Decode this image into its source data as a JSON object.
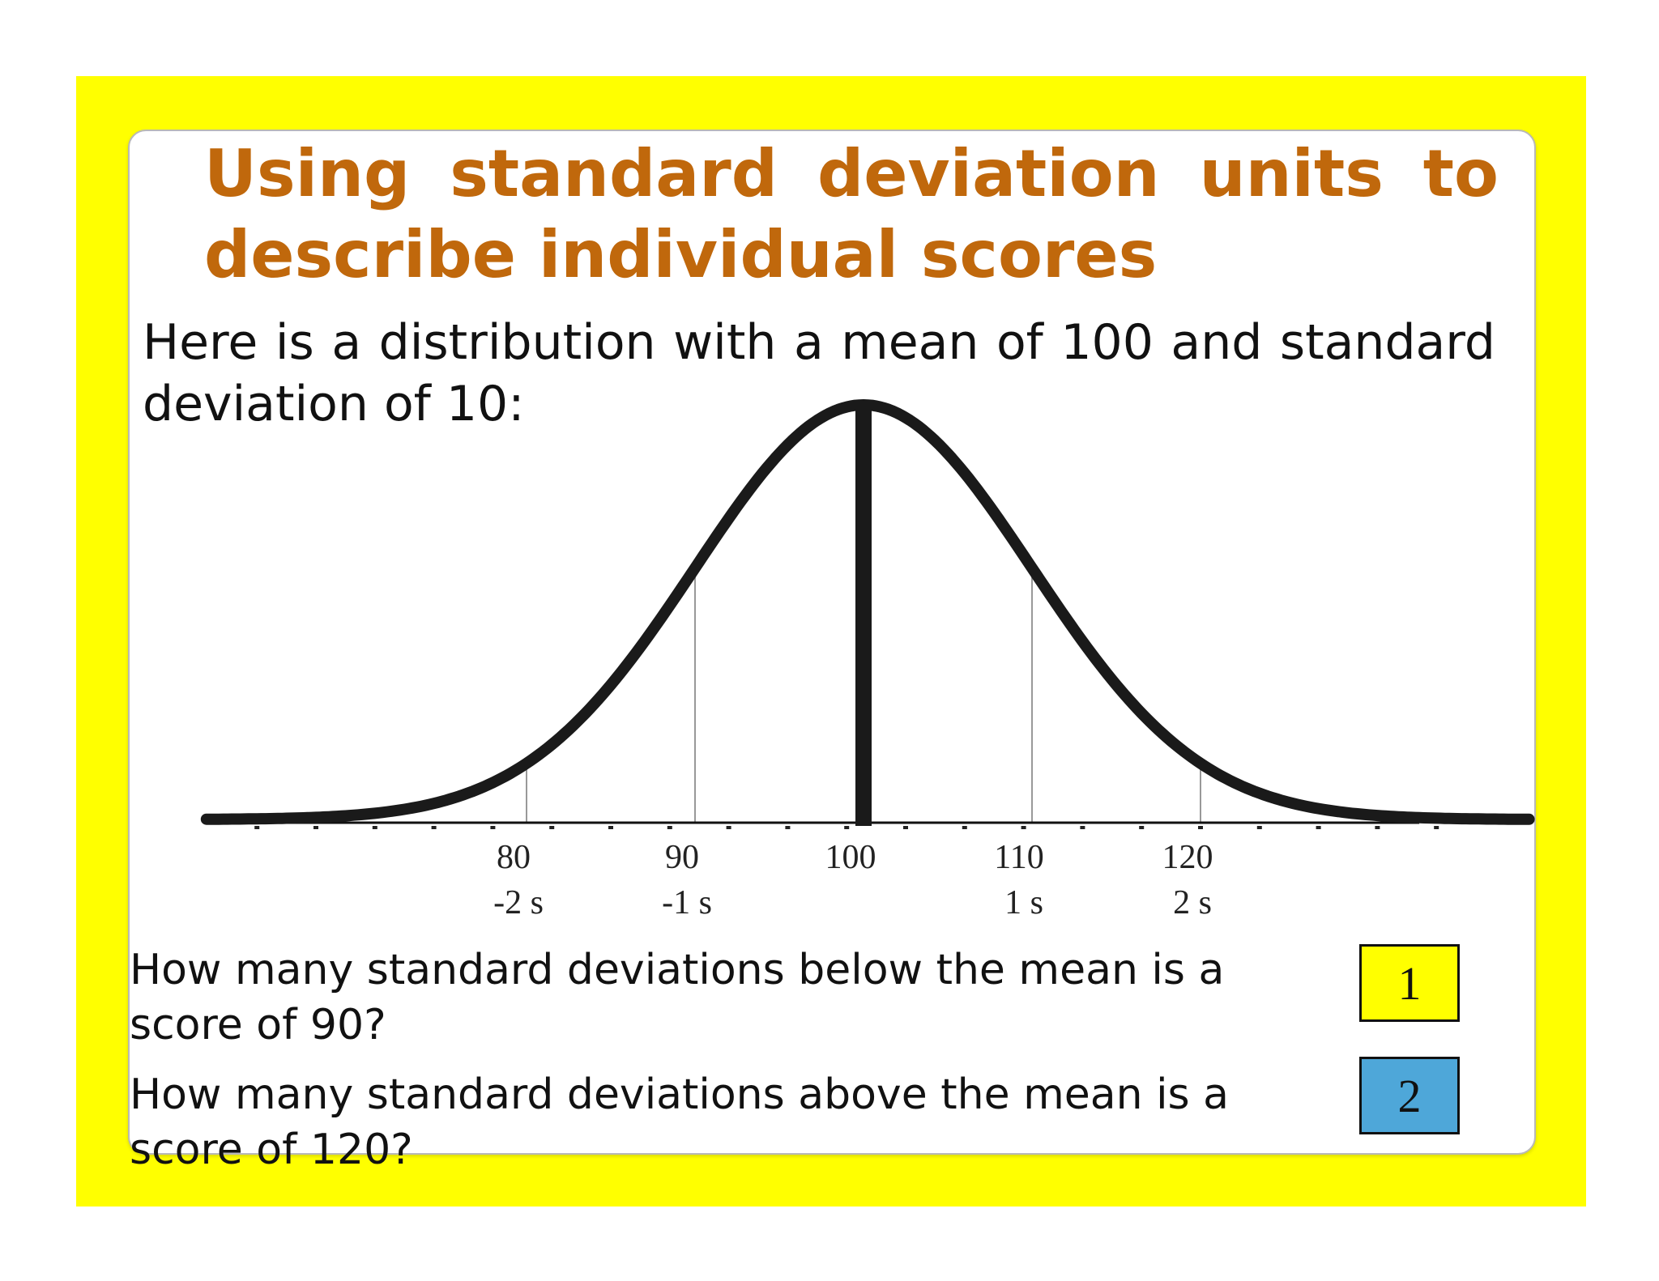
{
  "slide": {
    "title": "Using standard deviation units to describe individual scores",
    "intro": "Here is a distribution with a mean of 100 and standard deviation of 10:",
    "colors": {
      "frame": "#ffff00",
      "title": "#c0680c",
      "answer_1_fill": "#ffff00",
      "answer_2_fill": "#4ea7d9"
    }
  },
  "diagram": {
    "type": "normal-curve",
    "mean": 100,
    "sd": 10,
    "ticks": [
      {
        "value": 80,
        "label": "80",
        "sd_label": "-2 s"
      },
      {
        "value": 90,
        "label": "90",
        "sd_label": "-1 s"
      },
      {
        "value": 100,
        "label": "100",
        "sd_label": ""
      },
      {
        "value": 110,
        "label": "110",
        "sd_label": "1 s"
      },
      {
        "value": 120,
        "label": "120",
        "sd_label": "2 s"
      }
    ]
  },
  "questions": [
    {
      "text": "How many standard deviations below the mean is a score of 90?",
      "answer": "1"
    },
    {
      "text": "How many standard deviations above the mean is a score of 120?",
      "answer": "2"
    }
  ]
}
